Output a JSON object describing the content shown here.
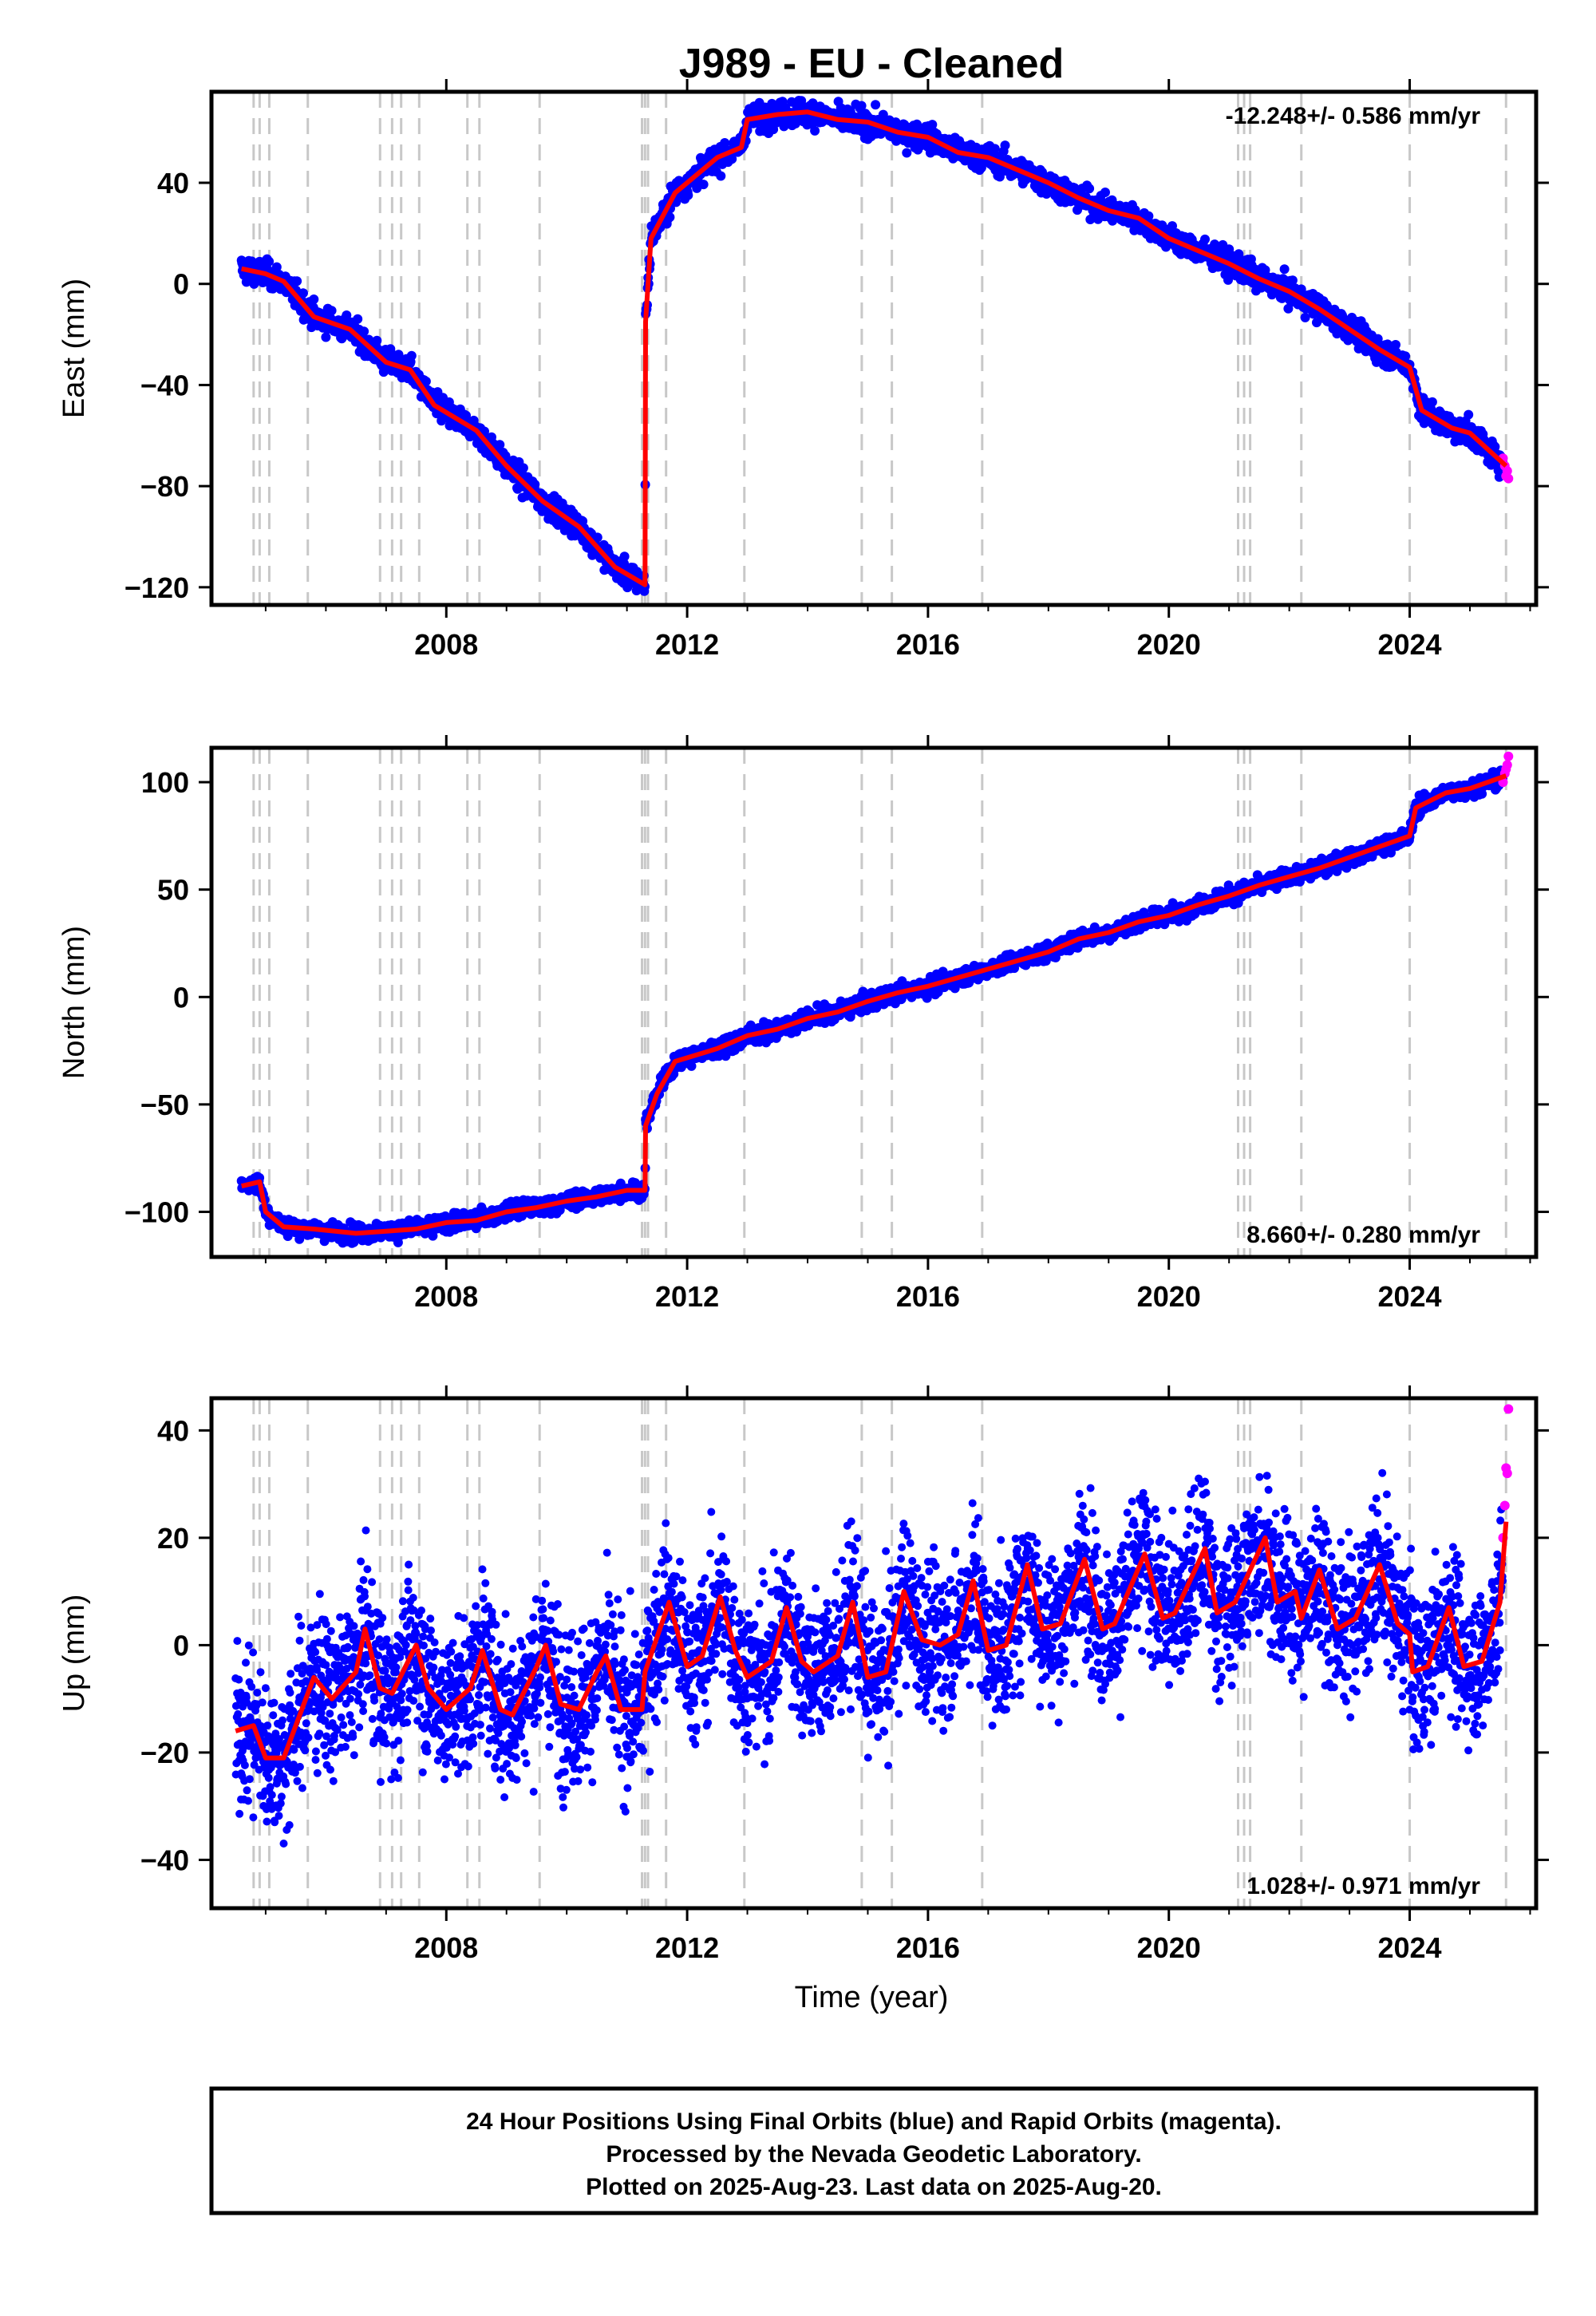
{
  "title": "J989  - EU - Cleaned",
  "xlabel": "Time (year)",
  "footer": {
    "line1": "24 Hour Positions Using Final Orbits (blue) and Rapid Orbits (magenta).",
    "line2": "Processed by the Nevada Geodetic Laboratory.",
    "line3": "Plotted on 2025-Aug-23. Last data on 2025-Aug-20."
  },
  "colors": {
    "final": "#0000ff",
    "rapid": "#ff00ff",
    "model": "#ff0000",
    "event_lines": "#c8c8c8",
    "frame": "#000000"
  },
  "chart_data": [
    {
      "type": "scatter",
      "panel": "east",
      "ylabel": "East (mm)",
      "rate": "-12.248+/- 0.586 mm/yr",
      "xlim": [
        2004.1,
        2026.1
      ],
      "ylim": [
        -127,
        76
      ],
      "xticks": [
        2008,
        2012,
        2016,
        2020,
        2024
      ],
      "yticks": [
        -120,
        -80,
        -40,
        0,
        40
      ],
      "noise": 2.5,
      "model": [
        [
          2004.6,
          6
        ],
        [
          2005.0,
          4
        ],
        [
          2005.3,
          1
        ],
        [
          2005.8,
          -13
        ],
        [
          2006.4,
          -18
        ],
        [
          2007.0,
          -31
        ],
        [
          2007.4,
          -34
        ],
        [
          2007.8,
          -48
        ],
        [
          2008.5,
          -58
        ],
        [
          2009.0,
          -72
        ],
        [
          2009.6,
          -86
        ],
        [
          2010.2,
          -96
        ],
        [
          2010.8,
          -112
        ],
        [
          2011.3,
          -119
        ],
        [
          2011.31,
          -15
        ],
        [
          2011.4,
          18
        ],
        [
          2011.8,
          36
        ],
        [
          2012.5,
          50
        ],
        [
          2012.9,
          54
        ],
        [
          2013.0,
          65
        ],
        [
          2013.5,
          67
        ],
        [
          2014.0,
          68
        ],
        [
          2014.5,
          65
        ],
        [
          2015.0,
          64
        ],
        [
          2015.5,
          60
        ],
        [
          2016.0,
          58
        ],
        [
          2016.5,
          52
        ],
        [
          2017.0,
          50
        ],
        [
          2017.5,
          45
        ],
        [
          2018.0,
          40
        ],
        [
          2018.5,
          34
        ],
        [
          2019.0,
          29
        ],
        [
          2019.5,
          26
        ],
        [
          2020.0,
          18
        ],
        [
          2020.5,
          13
        ],
        [
          2021.0,
          8
        ],
        [
          2021.5,
          2
        ],
        [
          2022.0,
          -3
        ],
        [
          2022.5,
          -10
        ],
        [
          2023.0,
          -18
        ],
        [
          2023.5,
          -26
        ],
        [
          2024.0,
          -33
        ],
        [
          2024.2,
          -50
        ],
        [
          2024.7,
          -57
        ],
        [
          2025.0,
          -59
        ],
        [
          2025.6,
          -72
        ]
      ],
      "rapid": [
        [
          2025.55,
          -69
        ],
        [
          2025.58,
          -72
        ],
        [
          2025.6,
          -76
        ],
        [
          2025.62,
          -74
        ],
        [
          2025.64,
          -77
        ]
      ]
    },
    {
      "type": "scatter",
      "panel": "north",
      "ylabel": "North (mm)",
      "rate": "8.660+/- 0.280 mm/yr",
      "xlim": [
        2004.1,
        2026.1
      ],
      "ylim": [
        -121,
        116
      ],
      "xticks": [
        2008,
        2012,
        2016,
        2020,
        2024
      ],
      "yticks": [
        -100,
        -50,
        0,
        50,
        100
      ],
      "noise": 2.0,
      "model": [
        [
          2004.6,
          -88
        ],
        [
          2004.9,
          -86
        ],
        [
          2005.0,
          -100
        ],
        [
          2005.3,
          -107
        ],
        [
          2005.8,
          -108
        ],
        [
          2006.5,
          -110
        ],
        [
          2007.0,
          -109
        ],
        [
          2007.5,
          -108
        ],
        [
          2008.0,
          -105
        ],
        [
          2008.5,
          -104
        ],
        [
          2009.0,
          -100
        ],
        [
          2009.5,
          -98
        ],
        [
          2010.0,
          -95
        ],
        [
          2010.5,
          -93
        ],
        [
          2011.0,
          -90
        ],
        [
          2011.3,
          -90
        ],
        [
          2011.31,
          -60
        ],
        [
          2011.5,
          -45
        ],
        [
          2011.8,
          -30
        ],
        [
          2012.5,
          -24
        ],
        [
          2013.0,
          -18
        ],
        [
          2013.5,
          -15
        ],
        [
          2014.0,
          -10
        ],
        [
          2014.5,
          -7
        ],
        [
          2015.0,
          -2
        ],
        [
          2015.5,
          2
        ],
        [
          2016.0,
          5
        ],
        [
          2016.5,
          9
        ],
        [
          2017.0,
          13
        ],
        [
          2017.5,
          17
        ],
        [
          2018.0,
          21
        ],
        [
          2018.5,
          27
        ],
        [
          2019.0,
          30
        ],
        [
          2019.5,
          35
        ],
        [
          2020.0,
          38
        ],
        [
          2020.5,
          43
        ],
        [
          2021.0,
          47
        ],
        [
          2021.5,
          52
        ],
        [
          2022.0,
          56
        ],
        [
          2022.5,
          60
        ],
        [
          2023.0,
          65
        ],
        [
          2023.5,
          70
        ],
        [
          2024.0,
          75
        ],
        [
          2024.1,
          88
        ],
        [
          2024.6,
          95
        ],
        [
          2025.0,
          97
        ],
        [
          2025.6,
          103
        ]
      ],
      "rapid": [
        [
          2025.55,
          100
        ],
        [
          2025.58,
          104
        ],
        [
          2025.6,
          106
        ],
        [
          2025.62,
          108
        ],
        [
          2025.64,
          112
        ]
      ]
    },
    {
      "type": "scatter",
      "panel": "up",
      "ylabel": "Up (mm)",
      "rate": "1.028+/- 0.971 mm/yr",
      "xlim": [
        2004.1,
        2026.1
      ],
      "ylim": [
        -49,
        46
      ],
      "xticks": [
        2008,
        2012,
        2016,
        2020,
        2024
      ],
      "yticks": [
        -40,
        -20,
        0,
        20,
        40
      ],
      "noise": 7.0,
      "model": [
        [
          2004.5,
          -16
        ],
        [
          2004.8,
          -15
        ],
        [
          2005.0,
          -21
        ],
        [
          2005.3,
          -21
        ],
        [
          2005.6,
          -12
        ],
        [
          2005.8,
          -6
        ],
        [
          2006.1,
          -10
        ],
        [
          2006.5,
          -5
        ],
        [
          2006.65,
          3
        ],
        [
          2006.9,
          -8
        ],
        [
          2007.1,
          -9
        ],
        [
          2007.5,
          0
        ],
        [
          2007.7,
          -8
        ],
        [
          2008.0,
          -12
        ],
        [
          2008.4,
          -8
        ],
        [
          2008.6,
          -1
        ],
        [
          2008.9,
          -12
        ],
        [
          2009.1,
          -13
        ],
        [
          2009.5,
          -4
        ],
        [
          2009.65,
          0
        ],
        [
          2009.9,
          -11
        ],
        [
          2010.2,
          -12
        ],
        [
          2010.5,
          -5
        ],
        [
          2010.65,
          -2
        ],
        [
          2010.9,
          -12
        ],
        [
          2011.25,
          -12
        ],
        [
          2011.3,
          -5
        ],
        [
          2011.7,
          8
        ],
        [
          2012.0,
          -4
        ],
        [
          2012.25,
          -2
        ],
        [
          2012.55,
          9
        ],
        [
          2012.8,
          -1
        ],
        [
          2013.0,
          -6
        ],
        [
          2013.4,
          -3
        ],
        [
          2013.65,
          7
        ],
        [
          2013.9,
          -3
        ],
        [
          2014.1,
          -5
        ],
        [
          2014.5,
          -2
        ],
        [
          2014.75,
          8
        ],
        [
          2015.0,
          -6
        ],
        [
          2015.3,
          -5
        ],
        [
          2015.6,
          10
        ],
        [
          2015.9,
          1
        ],
        [
          2016.2,
          0
        ],
        [
          2016.5,
          2
        ],
        [
          2016.75,
          12
        ],
        [
          2017.0,
          -1
        ],
        [
          2017.3,
          0
        ],
        [
          2017.65,
          15
        ],
        [
          2017.9,
          3
        ],
        [
          2018.2,
          4
        ],
        [
          2018.6,
          16
        ],
        [
          2018.9,
          3
        ],
        [
          2019.1,
          4
        ],
        [
          2019.6,
          17
        ],
        [
          2019.9,
          5
        ],
        [
          2020.1,
          6
        ],
        [
          2020.6,
          18
        ],
        [
          2020.8,
          6
        ],
        [
          2021.1,
          8
        ],
        [
          2021.6,
          20
        ],
        [
          2021.8,
          8
        ],
        [
          2022.1,
          10
        ],
        [
          2022.2,
          5
        ],
        [
          2022.5,
          14
        ],
        [
          2022.8,
          3
        ],
        [
          2023.1,
          5
        ],
        [
          2023.5,
          15
        ],
        [
          2023.8,
          4
        ],
        [
          2024.0,
          2
        ],
        [
          2024.05,
          -5
        ],
        [
          2024.3,
          -4
        ],
        [
          2024.65,
          7
        ],
        [
          2024.9,
          -4
        ],
        [
          2025.2,
          -3
        ],
        [
          2025.5,
          8
        ],
        [
          2025.6,
          23
        ]
      ],
      "rapid": [
        [
          2025.55,
          20
        ],
        [
          2025.58,
          26
        ],
        [
          2025.6,
          33
        ],
        [
          2025.62,
          32
        ],
        [
          2025.64,
          44
        ]
      ]
    }
  ],
  "event_years": [
    2004.8,
    2004.9,
    2005.06,
    2005.7,
    2006.9,
    2007.1,
    2007.25,
    2007.55,
    2008.35,
    2008.55,
    2009.55,
    2011.25,
    2011.3,
    2011.35,
    2011.65,
    2012.95,
    2014.9,
    2015.4,
    2016.9,
    2021.15,
    2021.25,
    2021.35,
    2022.2,
    2024.0,
    2025.6
  ]
}
